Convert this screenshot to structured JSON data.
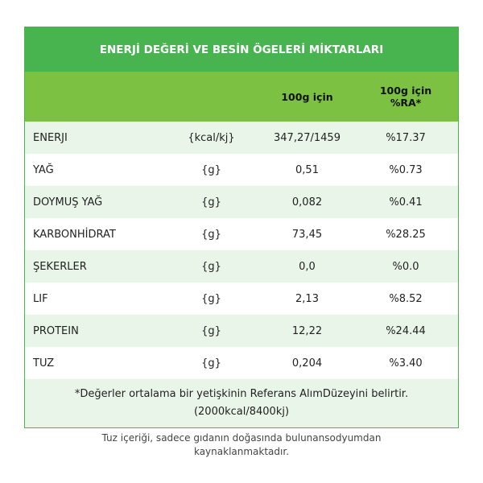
{
  "table": {
    "title": "ENERJİ DEĞERİ VE BESİN ÖGELERİ MİKTARLARI",
    "header": {
      "per100g": "100g için",
      "ra": [
        "100g için",
        "%RA*"
      ]
    },
    "rows": [
      [
        "ENERJI",
        "{kcal/kj}",
        "347,27/1459",
        "%17.37"
      ],
      [
        "YAĞ",
        "{g}",
        "0,51",
        "%0.73"
      ],
      [
        "DOYMUŞ YAĞ",
        "{g}",
        "0,082",
        "%0.41"
      ],
      [
        "KARBONHİDRAT",
        "{g}",
        "73,45",
        "%28.25"
      ],
      [
        "ŞEKERLER",
        "{g}",
        "0,0",
        "%0.0"
      ],
      [
        "LIF",
        "{g}",
        "2,13",
        "%8.52"
      ],
      [
        "PROTEIN",
        "{g}",
        "12,22",
        "%24.44"
      ],
      [
        "TUZ",
        "{g}",
        "0,204",
        "%3.40"
      ]
    ],
    "footnote": [
      "*Değerler ortalama bir yetişkinin Referans AlımDüzeyini belirtir.",
      "(2000kcal/8400kj)"
    ]
  },
  "note": [
    "Tuz içeriği, sadece gıdanın doğasında bulunansodyumdan",
    "kaynaklanmaktadır."
  ]
}
